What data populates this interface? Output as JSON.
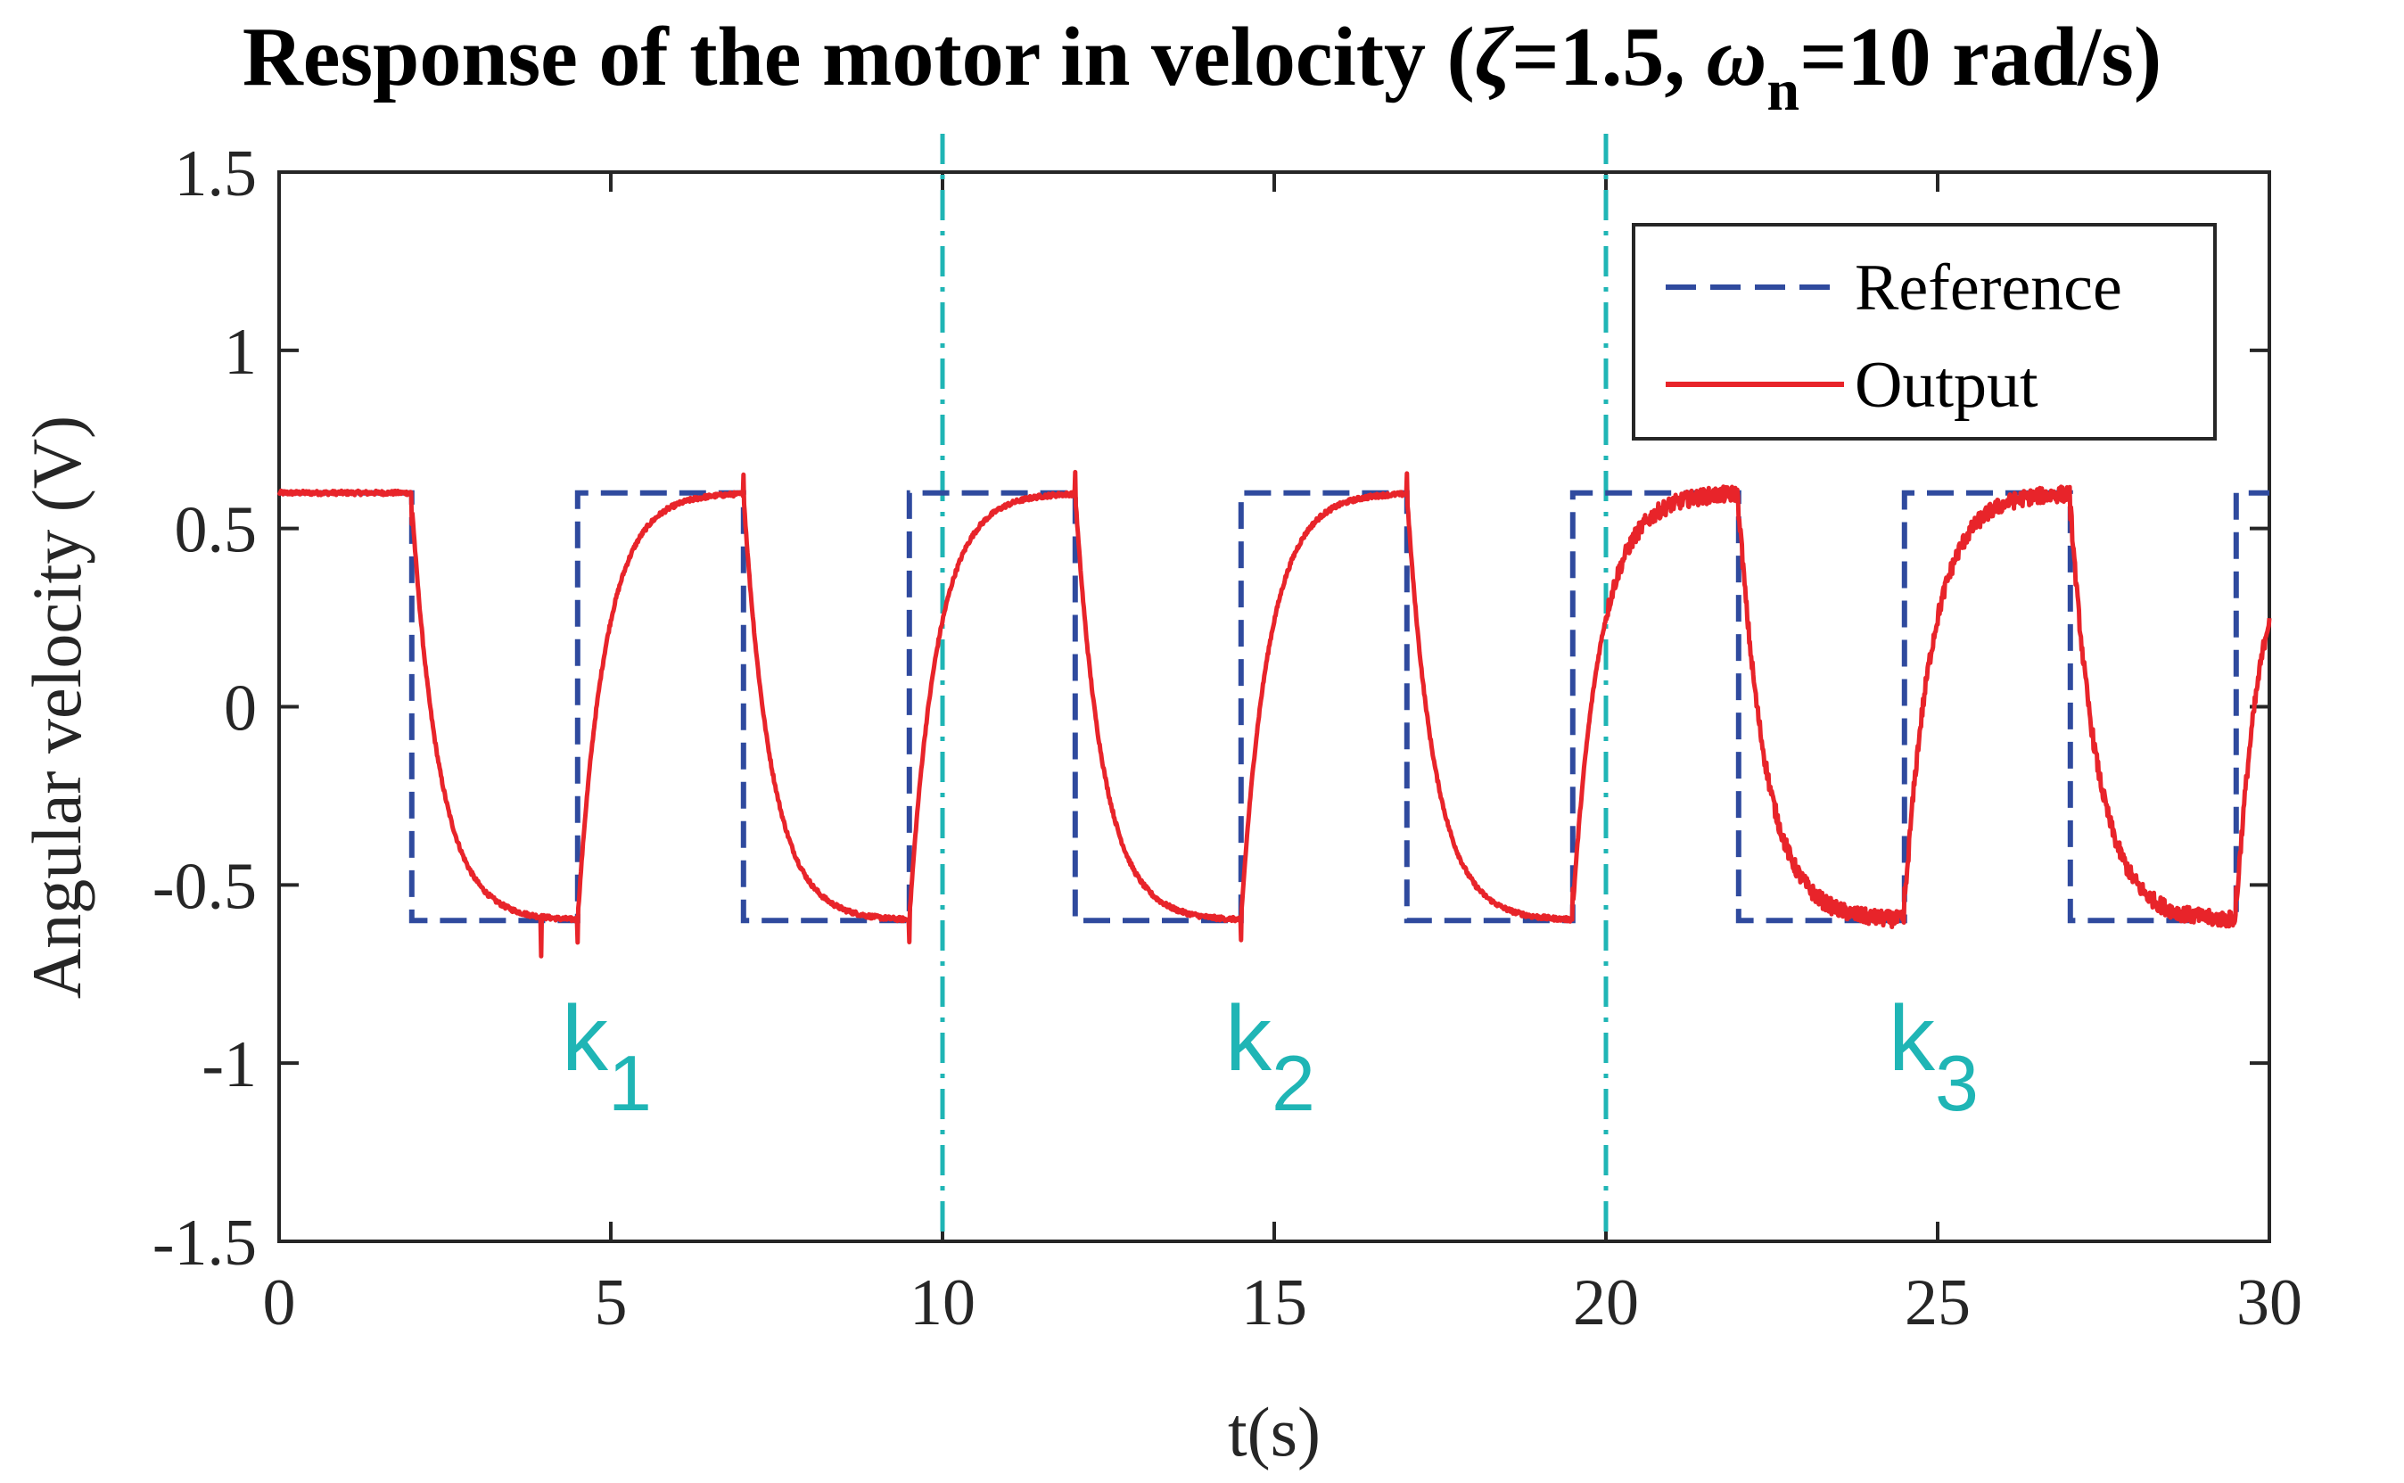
{
  "chart_data": {
    "type": "line",
    "title_prefix": "Response of the motor in velocity (",
    "zeta_symbol": "ζ",
    "zeta_value": "=1.5, ",
    "omega_symbol": "ω",
    "omega_subscript": "n",
    "omega_value": "=10 rad/s)",
    "xlabel": "t(s)",
    "ylabel": "Angular velocity (V)",
    "xlim": [
      0,
      30
    ],
    "ylim": [
      -1.5,
      1.5
    ],
    "xticks": [
      0,
      5,
      10,
      15,
      20,
      25,
      30
    ],
    "xtick_labels": [
      "0",
      "5",
      "10",
      "15",
      "20",
      "25",
      "30"
    ],
    "yticks": [
      1.5,
      1,
      0.5,
      0,
      -0.5,
      -1,
      -1.5
    ],
    "ytick_labels": [
      "1.5",
      "1",
      "0.5",
      "0",
      "-0.5",
      "-1",
      "-1.5"
    ],
    "grid": false,
    "legend_position": "top-right",
    "series": [
      {
        "name": "Reference",
        "style": "dashed",
        "color": "#2f4a9e",
        "x": [
          0,
          2,
          2,
          4.5,
          4.5,
          7,
          7,
          9.5,
          9.5,
          12,
          12,
          14.5,
          14.5,
          17,
          17,
          19.5,
          19.5,
          22,
          22,
          24.5,
          24.5,
          27,
          27,
          29.5,
          29.5,
          30
        ],
        "values": [
          0.6,
          0.6,
          -0.6,
          -0.6,
          0.6,
          0.6,
          -0.6,
          -0.6,
          0.6,
          0.6,
          -0.6,
          -0.6,
          0.6,
          0.6,
          -0.6,
          -0.6,
          0.6,
          0.6,
          -0.6,
          -0.6,
          0.6,
          0.6,
          -0.6,
          -0.6,
          0.6,
          0.6
        ]
      },
      {
        "name": "Output",
        "style": "solid",
        "color": "#e8242a",
        "model": "first-order response to the reference, time constant ~0.4 s, noise amplitude increasing in region k3",
        "switch_times": [
          2,
          4.5,
          7,
          9.5,
          12,
          14.5,
          17,
          19.5,
          22,
          24.5,
          27,
          29.5
        ],
        "steady_values": [
          0.6,
          -0.6
        ]
      }
    ],
    "separators": [
      10,
      20
    ],
    "separator_color": "#1fb5b5",
    "regions": [
      {
        "label": "k",
        "subscript": "1"
      },
      {
        "label": "k",
        "subscript": "2"
      },
      {
        "label": "k",
        "subscript": "3"
      }
    ]
  }
}
